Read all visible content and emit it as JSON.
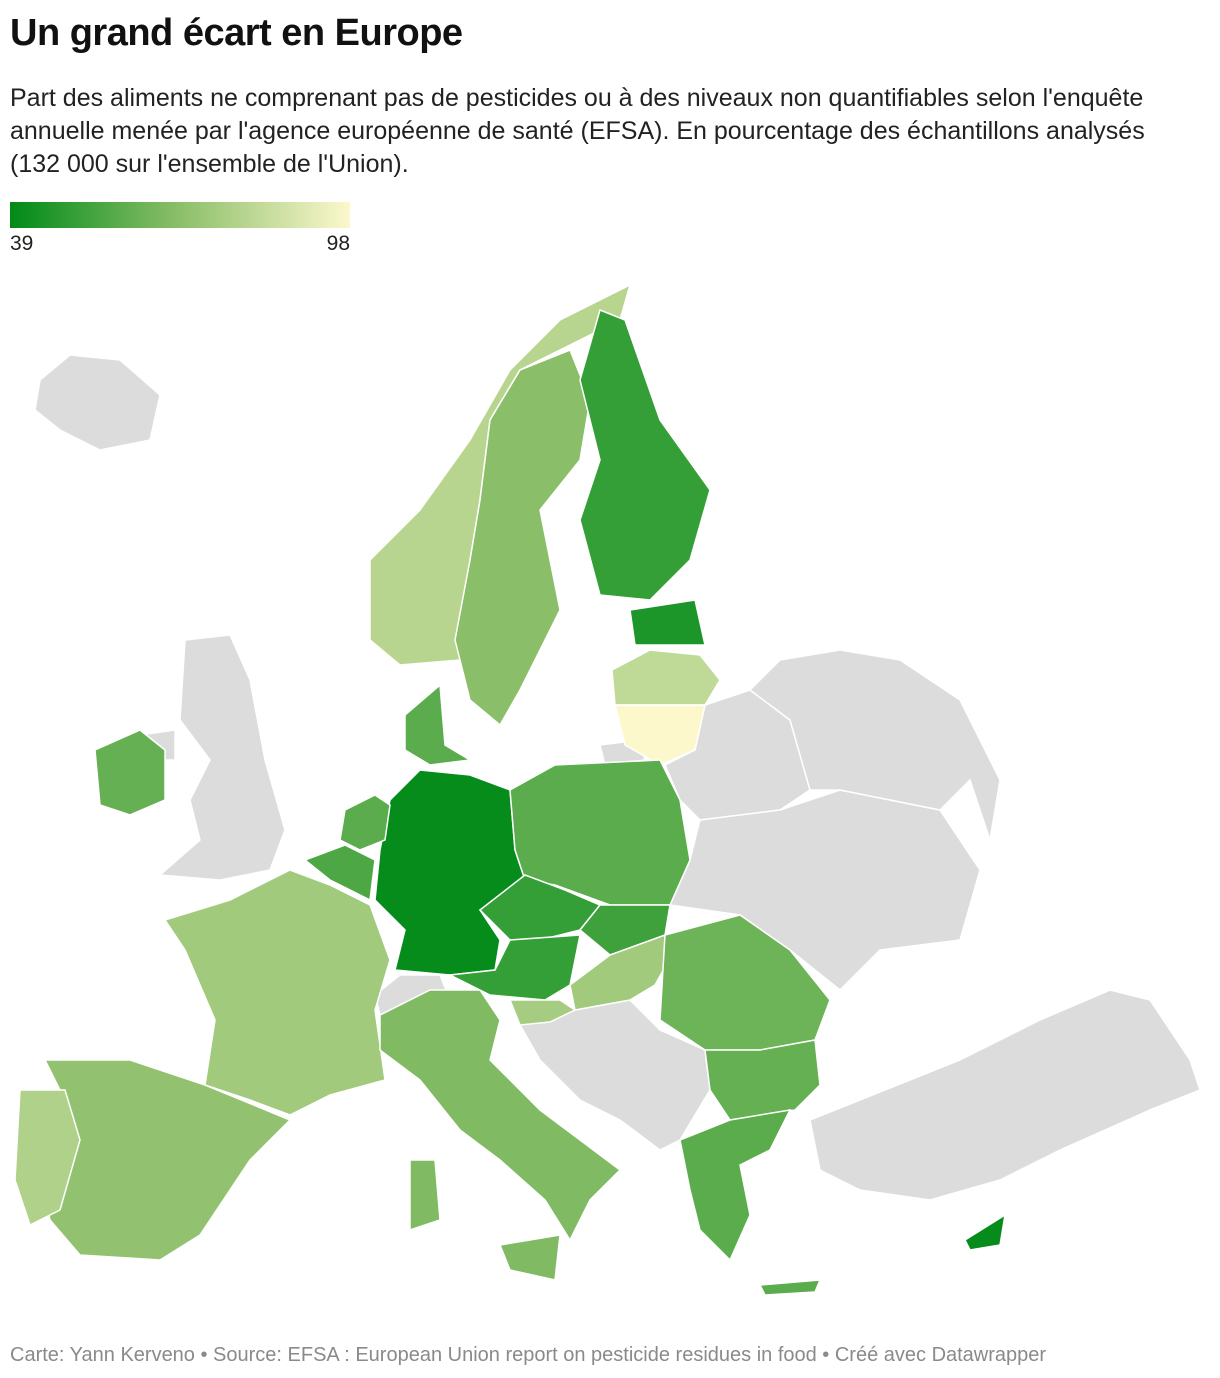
{
  "chart_data": {
    "type": "choropleth",
    "title": "Un grand écart en Europe",
    "subtitle": "Part des aliments ne comprenant pas de pesticides ou à des niveaux non quantifiables selon l'enquête annuelle menée par l'agence européenne de santé (EFSA). En pourcentage des échantillons analysés (132 000 sur l'ensemble de l'Union).",
    "legend": {
      "min": 39,
      "max": 98,
      "colors": [
        "#008a18",
        "#8cbf6a",
        "#fcf8cc"
      ]
    },
    "values": [
      40,
      74,
      70,
      78,
      66,
      66,
      66,
      80,
      68,
      50,
      45,
      82,
      98,
      58,
      50,
      52,
      50,
      74,
      62,
      60,
      58,
      58,
      58,
      58,
      55,
      60,
      40,
      75
    ],
    "no_data_color": "#dcdcdc",
    "footer": "Carte: Yann Kerveno • Source: EFSA : European Union report on pesticide residues in food  • Créé avec Datawrapper"
  }
}
